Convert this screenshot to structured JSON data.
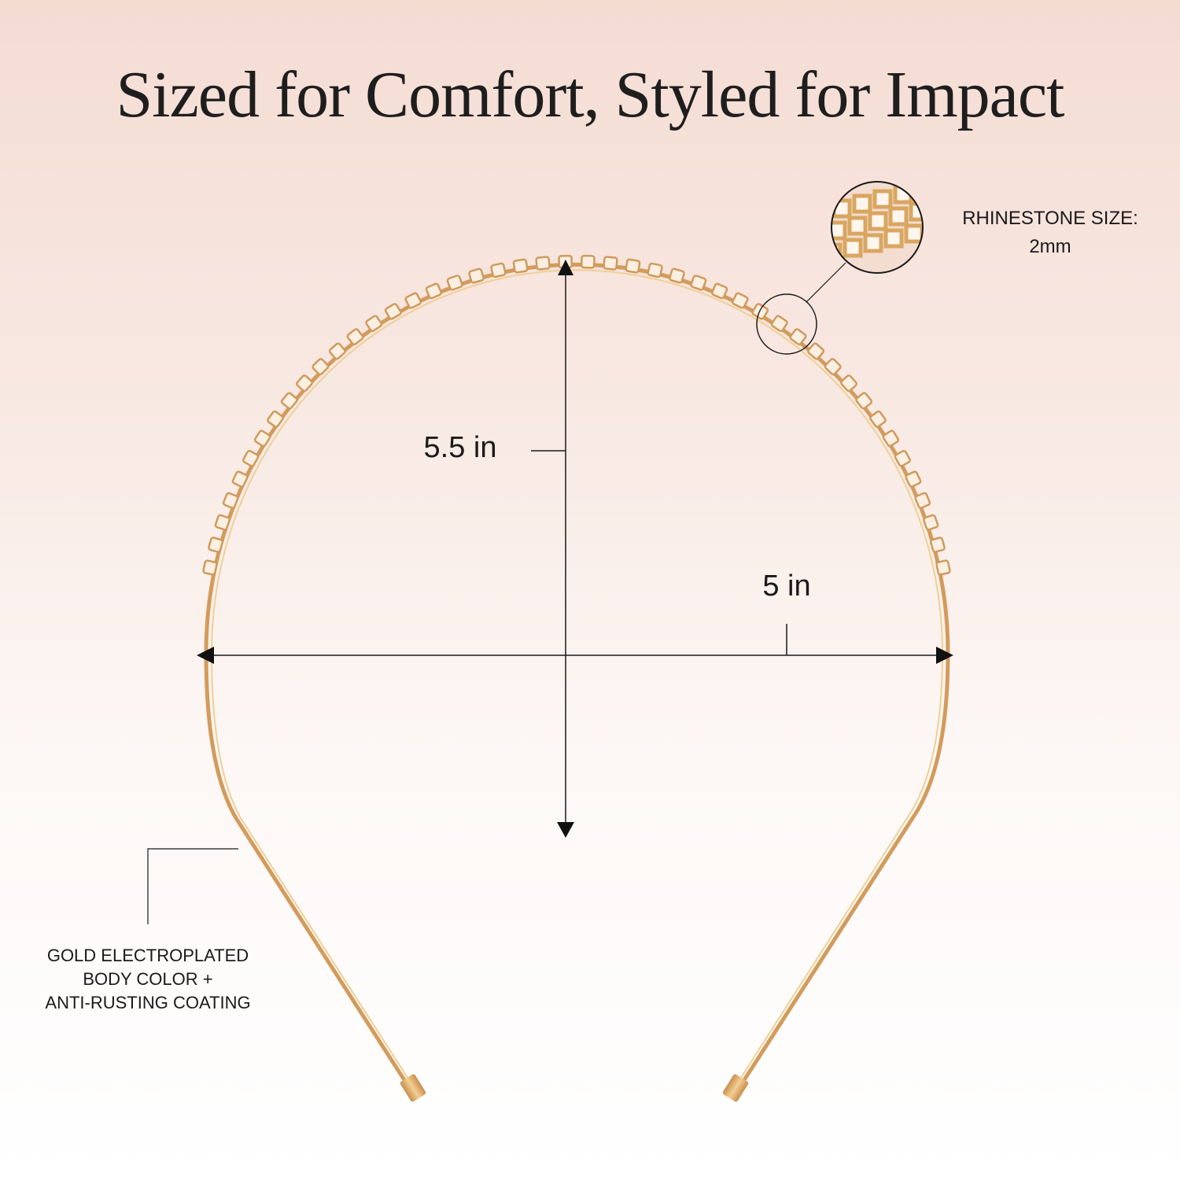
{
  "title": "Sized for Comfort, Styled for Impact",
  "dimensions": {
    "height_label": "5.5 in",
    "width_label": "5 in"
  },
  "callouts": {
    "rhinestone": {
      "line1": "RHINESTONE SIZE:",
      "line2": "2mm"
    },
    "body": {
      "line1": "GOLD ELECTROPLATED",
      "line2": "BODY COLOR +",
      "line3": "ANTI-RUSTING COATING"
    }
  },
  "colors": {
    "gold": "#d9a765",
    "gold_light": "#f1d29a",
    "line": "#1a1a1a"
  }
}
